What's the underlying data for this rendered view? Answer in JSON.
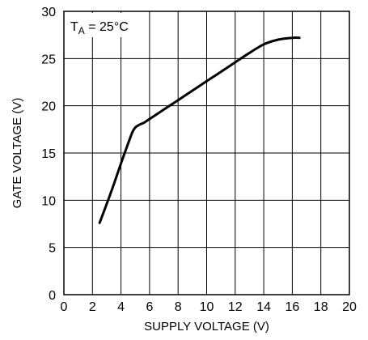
{
  "chart_data": {
    "type": "line",
    "title": "",
    "xlabel": "SUPPLY VOLTAGE (V)",
    "ylabel": "GATE VOLTAGE (V)",
    "xlim": [
      0,
      20
    ],
    "ylim": [
      0,
      30
    ],
    "x_ticks": [
      0,
      2,
      4,
      6,
      8,
      10,
      12,
      14,
      16,
      18,
      20
    ],
    "y_ticks": [
      0,
      5,
      10,
      15,
      20,
      25,
      30
    ],
    "grid": true,
    "annotation": {
      "prefix": "T",
      "subscript": "A",
      "suffix": " = 25°C"
    },
    "series": [
      {
        "x": [
          2.5,
          3.0,
          3.5,
          4.0,
          4.5,
          4.8,
          5.0,
          5.3,
          5.6,
          6.0,
          7.0,
          8.0,
          9.0,
          10.0,
          11.0,
          12.0,
          13.0,
          14.0,
          15.0,
          16.0,
          16.5
        ],
        "y": [
          7.6,
          9.6,
          11.7,
          13.9,
          16.0,
          17.2,
          17.7,
          18.0,
          18.2,
          18.6,
          19.6,
          20.6,
          21.6,
          22.6,
          23.6,
          24.6,
          25.6,
          26.5,
          27.0,
          27.2,
          27.2
        ]
      }
    ]
  }
}
